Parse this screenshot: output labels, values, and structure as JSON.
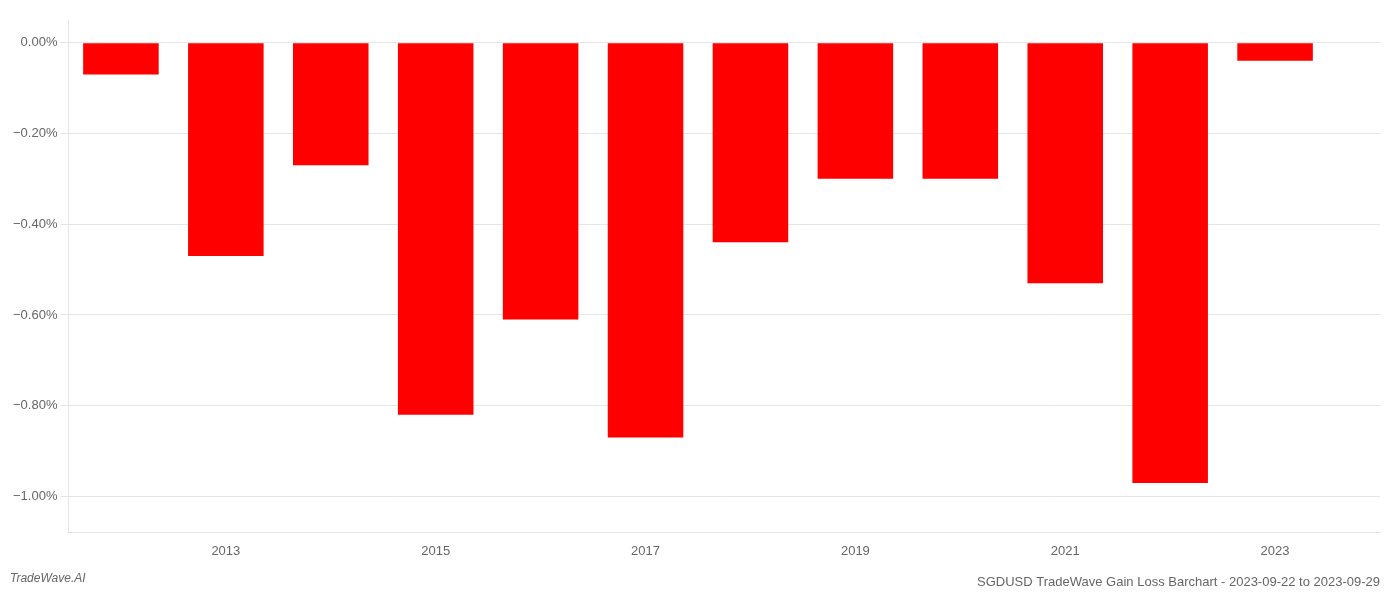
{
  "chart_data": {
    "type": "bar",
    "title": "SGDUSD TradeWave Gain Loss Barchart - 2023-09-22 to 2023-09-29",
    "annotations": [
      "TradeWave.AI"
    ],
    "x": [
      2012,
      2013,
      2014,
      2015,
      2016,
      2017,
      2018,
      2019,
      2020,
      2021,
      2022,
      2023
    ],
    "values": [
      -0.07,
      -0.47,
      -0.27,
      -0.82,
      -0.61,
      -0.87,
      -0.44,
      -0.3,
      -0.3,
      -0.53,
      -0.97,
      -0.04
    ],
    "color": "#ff0000",
    "xlim": [
      2011.5,
      2024.0
    ],
    "xticks": [
      2013,
      2015,
      2017,
      2019,
      2021,
      2023
    ],
    "ylim": [
      -1.08,
      0.05
    ],
    "yticks": [
      {
        "value": 0.0,
        "label": "0.00%"
      },
      {
        "value": -0.2,
        "label": "−0.20%"
      },
      {
        "value": -0.4,
        "label": "−0.40%"
      },
      {
        "value": -0.6,
        "label": "−0.60%"
      },
      {
        "value": -0.8,
        "label": "−0.80%"
      },
      {
        "value": -1.0,
        "label": "−1.00%"
      }
    ],
    "grid": "y"
  }
}
